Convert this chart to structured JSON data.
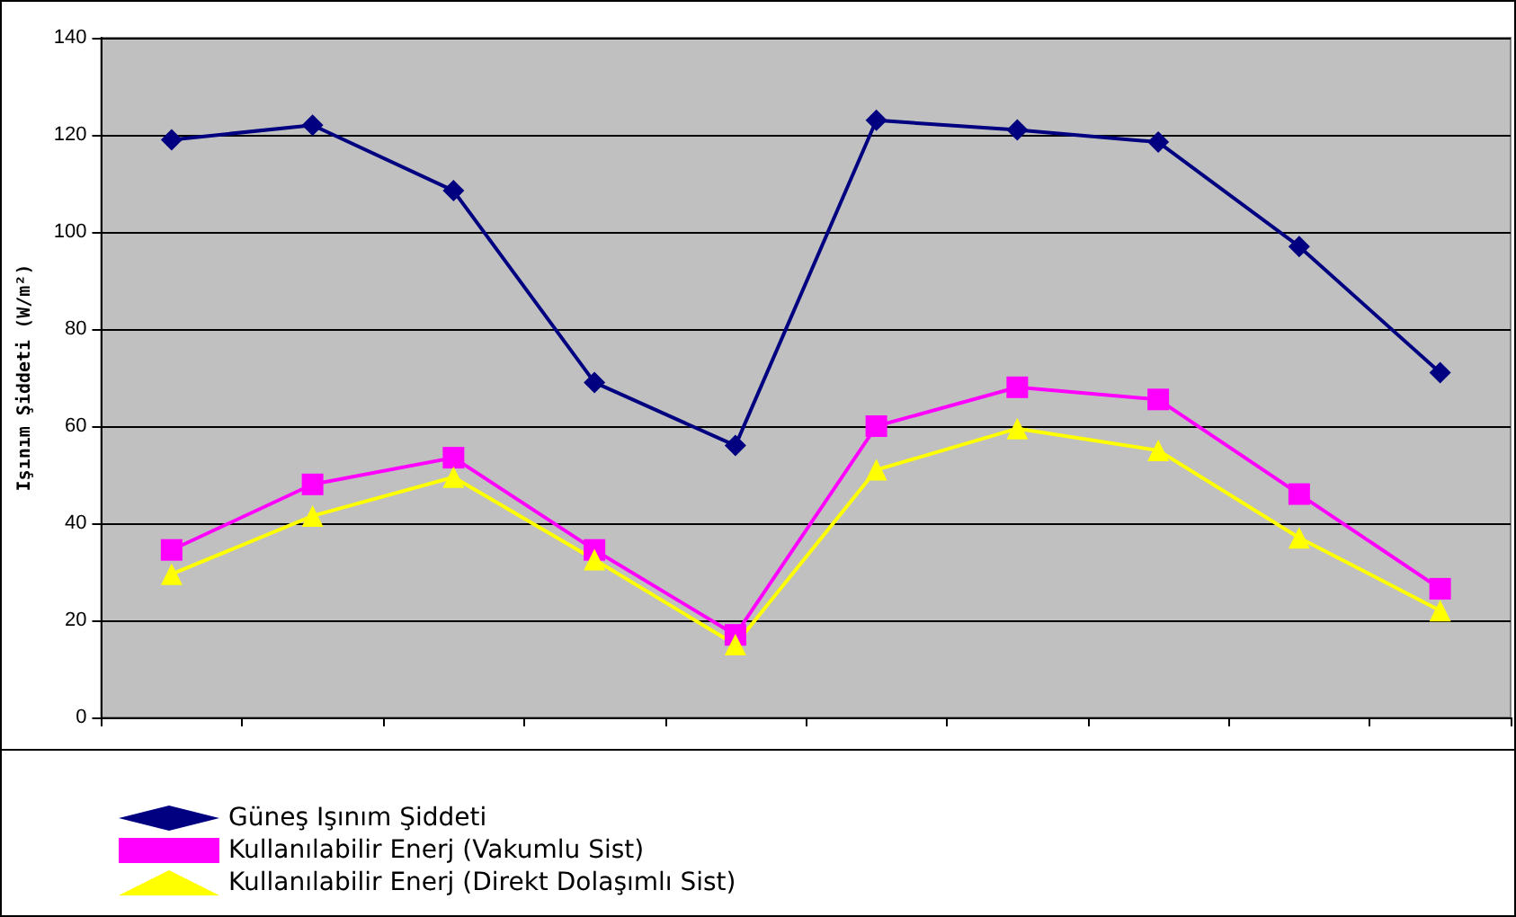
{
  "chart_data": {
    "type": "line",
    "ylabel": "Işınım Şiddeti (W/m²)",
    "categories": [
      null,
      null,
      null,
      null,
      null,
      null,
      null,
      null,
      null,
      null
    ],
    "series": [
      {
        "name": "Güneş Işınım Şiddeti",
        "color": "#000080",
        "marker": "diamond",
        "values": [
          119,
          122,
          108.5,
          69,
          56,
          123,
          121,
          118.5,
          97,
          71
        ]
      },
      {
        "name": "Kullanılabilir Enerj (Vakumlu Sist)",
        "color": "#ff00ff",
        "marker": "square",
        "values": [
          34.5,
          48,
          53.5,
          34.5,
          17,
          60,
          68,
          65.5,
          46,
          26.5
        ]
      },
      {
        "name": "Kullanılabilir Enerj (Direkt Dolaşımlı Sist)",
        "color": "#ffff00",
        "marker": "triangle",
        "values": [
          29.5,
          41.5,
          49.5,
          32.5,
          15,
          51,
          59.5,
          55,
          37,
          22
        ]
      }
    ],
    "ylim": [
      0,
      140
    ],
    "yticks": [
      0,
      20,
      40,
      60,
      80,
      100,
      120,
      140
    ],
    "grid": "y",
    "legend": "bottom"
  }
}
